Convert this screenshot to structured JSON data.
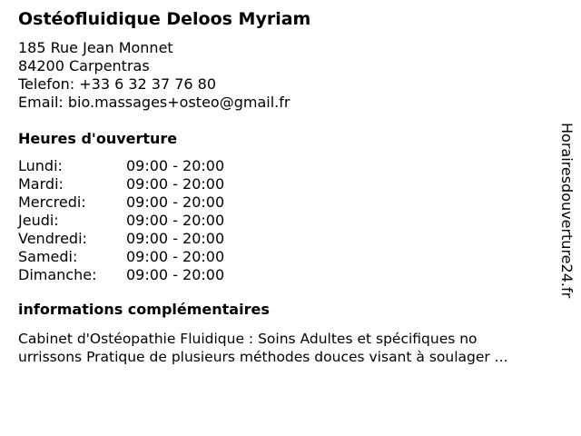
{
  "business": {
    "name": "Ostéofluidique Deloos Myriam",
    "address_line1": "185 Rue Jean Monnet",
    "address_line2": "84200 Carpentras",
    "phone": "Telefon: +33 6 32 37 76 80",
    "email": "Email: bio.massages+osteo@gmail.fr"
  },
  "hours": {
    "heading": "Heures d'ouverture",
    "rows": [
      {
        "day": "Lundi:",
        "time": "09:00 - 20:00"
      },
      {
        "day": "Mardi:",
        "time": "09:00 - 20:00"
      },
      {
        "day": "Mercredi:",
        "time": "09:00 - 20:00"
      },
      {
        "day": "Jeudi:",
        "time": "09:00 - 20:00"
      },
      {
        "day": "Vendredi:",
        "time": "09:00 - 20:00"
      },
      {
        "day": "Samedi:",
        "time": "09:00 - 20:00"
      },
      {
        "day": "Dimanche:",
        "time": "09:00 - 20:00"
      }
    ]
  },
  "info": {
    "heading": "informations complémentaires",
    "line1": "Cabinet d'Ostéopathie Fluidique : Soins Adultes et spécifiques no",
    "line2": "urrissons Pratique de plusieurs méthodes douces visant à soulager ..."
  },
  "watermark": "Horairesdouverture24.fr"
}
